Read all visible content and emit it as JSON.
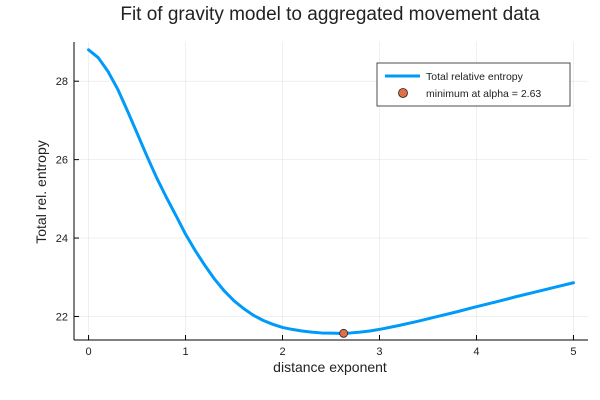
{
  "chart_data": {
    "type": "line",
    "title": "Fit of gravity model to aggregated movement data",
    "xlabel": "distance exponent",
    "ylabel": "Total rel. entropy",
    "xlim": [
      -0.15,
      5.15
    ],
    "ylim": [
      21.4,
      29.0
    ],
    "xticks": [
      0,
      1,
      2,
      3,
      4,
      5
    ],
    "yticks": [
      22,
      24,
      26,
      28
    ],
    "grid": true,
    "legend_position": "top-right",
    "series": [
      {
        "name": "Total relative entropy",
        "color": "#009AF9",
        "x": [
          0.0,
          0.1,
          0.2,
          0.3,
          0.4,
          0.5,
          0.6,
          0.7,
          0.8,
          0.9,
          1.0,
          1.1,
          1.2,
          1.3,
          1.4,
          1.5,
          1.6,
          1.7,
          1.8,
          1.9,
          2.0,
          2.1,
          2.2,
          2.3,
          2.4,
          2.5,
          2.6,
          2.63,
          2.7,
          2.8,
          2.9,
          3.0,
          3.2,
          3.4,
          3.6,
          3.8,
          4.0,
          4.2,
          4.4,
          4.6,
          4.8,
          5.0
        ],
        "y": [
          28.8,
          28.6,
          28.25,
          27.8,
          27.25,
          26.68,
          26.1,
          25.55,
          25.05,
          24.58,
          24.1,
          23.68,
          23.3,
          22.95,
          22.65,
          22.4,
          22.2,
          22.03,
          21.9,
          21.8,
          21.72,
          21.67,
          21.63,
          21.6,
          21.58,
          21.575,
          21.57,
          21.57,
          21.58,
          21.6,
          21.63,
          21.67,
          21.77,
          21.88,
          22.0,
          22.12,
          22.25,
          22.37,
          22.5,
          22.62,
          22.74,
          22.86
        ]
      },
      {
        "name": "minimum at alpha = 2.63",
        "type": "scatter",
        "color": "#E26F46",
        "x": [
          2.63
        ],
        "y": [
          21.57
        ]
      }
    ]
  }
}
